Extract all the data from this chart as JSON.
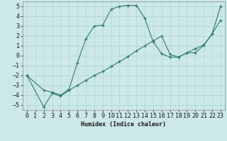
{
  "line1_x": [
    0,
    2,
    3,
    4,
    5,
    6,
    7,
    8,
    9,
    10,
    11,
    12,
    13,
    14,
    15,
    16,
    17,
    18,
    19,
    20,
    21,
    22,
    23
  ],
  "line1_y": [
    -2.0,
    -3.5,
    -3.7,
    -4.0,
    -3.4,
    -0.7,
    1.7,
    3.0,
    3.1,
    4.7,
    5.0,
    5.1,
    5.1,
    3.8,
    1.4,
    0.2,
    -0.15,
    -0.15,
    0.3,
    0.7,
    1.1,
    2.2,
    3.6
  ],
  "line2_x": [
    0,
    2,
    3,
    4,
    5,
    6,
    7,
    8,
    9,
    10,
    11,
    12,
    13,
    14,
    15,
    16,
    17,
    18,
    19,
    20,
    21,
    22,
    23
  ],
  "line2_y": [
    -2.0,
    -5.2,
    -3.8,
    -4.1,
    -3.5,
    -3.0,
    -2.5,
    -2.0,
    -1.6,
    -1.1,
    -0.6,
    -0.1,
    0.5,
    1.0,
    1.5,
    2.0,
    0.15,
    -0.15,
    0.3,
    0.3,
    1.05,
    2.2,
    5.0
  ],
  "line_color": "#2d7a6e",
  "bg_color": "#cce8e8",
  "grid_color": "#aed4d4",
  "xlabel": "Humidex (Indice chaleur)",
  "xlim": [
    -0.5,
    23.5
  ],
  "ylim": [
    -5.5,
    5.5
  ],
  "xticks": [
    0,
    1,
    2,
    3,
    4,
    5,
    6,
    7,
    8,
    9,
    10,
    11,
    12,
    13,
    14,
    15,
    16,
    17,
    18,
    19,
    20,
    21,
    22,
    23
  ],
  "yticks": [
    -5,
    -4,
    -3,
    -2,
    -1,
    0,
    1,
    2,
    3,
    4,
    5
  ],
  "font_size": 6.0,
  "marker": "+"
}
